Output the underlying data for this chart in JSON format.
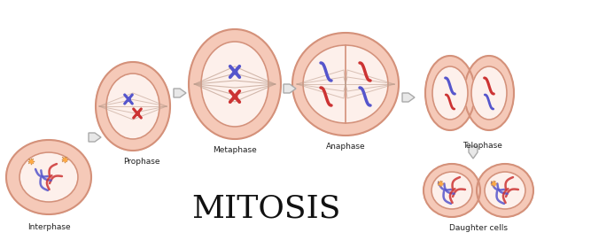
{
  "title": "MITOSIS",
  "stages": [
    "Interphase",
    "Prophase",
    "Metaphase",
    "Anaphase",
    "Telophase",
    "Daughter cells"
  ],
  "background_color": "#ffffff",
  "cell_fill": "#f5c9b8",
  "cell_inner": "#fdf0eb",
  "cell_border": "#d4917a",
  "chromosome_blue": "#5555cc",
  "chromosome_red": "#cc3333",
  "title_color": "#111111",
  "label_color": "#222222",
  "arrow_color": "#cccccc",
  "arrow_edge": "#aaaaaa",
  "spindle_color": "#c0a090"
}
